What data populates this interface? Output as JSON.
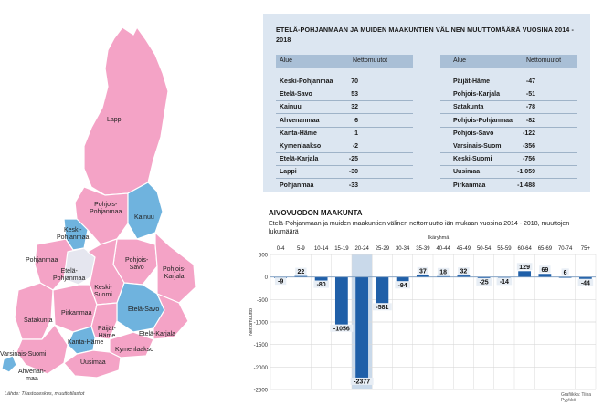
{
  "map": {
    "colors": {
      "positive": "#f4a3c6",
      "negative": "#f07aa8",
      "top": "#6fb3de",
      "neutral": "#e5e6ef",
      "border": "#ffffff"
    },
    "regions": [
      {
        "key": "lappi",
        "label": "Lappi"
      },
      {
        "key": "pohjois_pohjanmaa",
        "label": "Pohjois-\nPohjanmaa"
      },
      {
        "key": "kainuu",
        "label": "Kainuu"
      },
      {
        "key": "keski_pohjanmaa",
        "label": "Keski-\nPohjanmaa"
      },
      {
        "key": "pohjanmaa",
        "label": "Pohjanmaa"
      },
      {
        "key": "etela_pohjanmaa",
        "label": "Etelä-\nPohjanmaa"
      },
      {
        "key": "pohjois_savo",
        "label": "Pohjois-\nSavo"
      },
      {
        "key": "pohjois_karjala",
        "label": "Pohjois-\nKarjala"
      },
      {
        "key": "keski_suomi",
        "label": "Keski-\nSuomi"
      },
      {
        "key": "satakunta",
        "label": "Satakunta"
      },
      {
        "key": "pirkanmaa",
        "label": "Pirkanmaa"
      },
      {
        "key": "etela_savo",
        "label": "Etelä-Savo"
      },
      {
        "key": "paijat_hame",
        "label": "Päijät-\nHäme"
      },
      {
        "key": "etela_karjala",
        "label": "Etelä-Karjala"
      },
      {
        "key": "kanta_hame",
        "label": "Kanta-Häme"
      },
      {
        "key": "kymenlaakso",
        "label": "Kymenlaakso"
      },
      {
        "key": "varsinais_suomi",
        "label": "Varsinais-Suomi"
      },
      {
        "key": "uusimaa",
        "label": "Uusimaa"
      },
      {
        "key": "ahvenanmaa",
        "label": "Ahvenan-\nmaa"
      }
    ],
    "source": "Lähde: Tilastokeskus, muuttotilastot"
  },
  "table": {
    "title": "ETELÄ-POHJANMAAN JA MUIDEN MAAKUNTIEN VÄLINEN MUUTTOMÄÄRÄ VUOSINA 2014 - 2018",
    "col_region": "Alue",
    "col_value": "Nettomuutot",
    "left": [
      {
        "name": "Keski-Pohjanmaa",
        "value": "70"
      },
      {
        "name": "Etelä-Savo",
        "value": "53"
      },
      {
        "name": "Kainuu",
        "value": "32"
      },
      {
        "name": "Ahvenanmaa",
        "value": "6"
      },
      {
        "name": "Kanta-Häme",
        "value": "1"
      },
      {
        "name": "Kymenlaakso",
        "value": "-2"
      },
      {
        "name": "Etelä-Karjala",
        "value": "-25"
      },
      {
        "name": "Lappi",
        "value": "-30"
      },
      {
        "name": "Pohjanmaa",
        "value": "-33"
      }
    ],
    "right": [
      {
        "name": "Päijät-Häme",
        "value": "-47"
      },
      {
        "name": "Pohjois-Karjala",
        "value": "-51"
      },
      {
        "name": "Satakunta",
        "value": "-78"
      },
      {
        "name": "Pohjois-Pohjanmaa",
        "value": "-82"
      },
      {
        "name": "Pohjois-Savo",
        "value": "-122"
      },
      {
        "name": "Varsinais-Suomi",
        "value": "-356"
      },
      {
        "name": "Keski-Suomi",
        "value": "-756"
      },
      {
        "name": "Uusimaa",
        "value": "-1 059"
      },
      {
        "name": "Pirkanmaa",
        "value": "-1 488"
      }
    ]
  },
  "chart_title": "AIVOVUODON MAAKUNTA",
  "chart_subtitle": "Etelä-Pohjanmaan ja muiden maakuntien välinen nettomuutto iän mukaan vuosina 2014 - 2018, muuttojen lukumäärä",
  "credit": "Grafiikka: Tiina Pyykkö",
  "chart_data": {
    "type": "bar",
    "xlabel": "Ikäryhmä",
    "ylabel": "Nettomuutto",
    "categories": [
      "0-4",
      "5-9",
      "10-14",
      "15-19",
      "20-24",
      "25-29",
      "30-34",
      "35-39",
      "40-44",
      "45-49",
      "50-54",
      "55-59",
      "60-64",
      "65-69",
      "70-74",
      "75+"
    ],
    "values": [
      -9,
      22,
      -80,
      -1056,
      -2377,
      -581,
      -94,
      37,
      18,
      32,
      -25,
      -14,
      129,
      69,
      6,
      -44
    ],
    "ylim": [
      -2500,
      500
    ],
    "yticks": [
      500,
      0,
      -500,
      -1000,
      -1500,
      -2000,
      -2500
    ],
    "colors": {
      "bar": "#1f5fa8",
      "label_bg": "#e8eef5",
      "grid": "#d9d9d9",
      "highlight": "#c9d9ea"
    },
    "grid": true
  }
}
